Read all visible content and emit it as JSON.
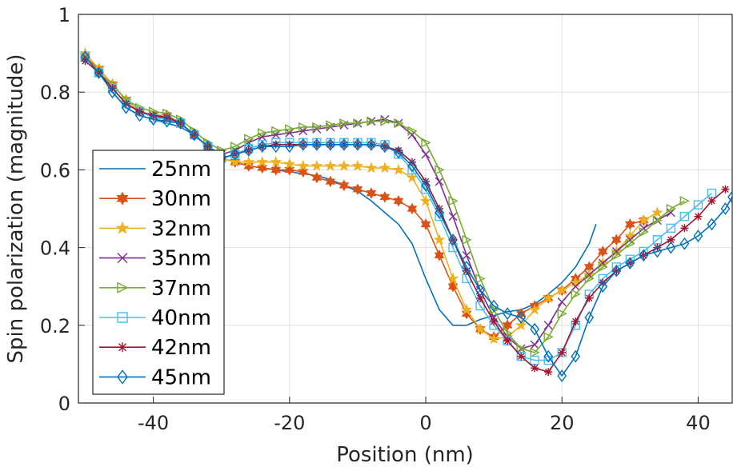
{
  "chart_data": {
    "type": "line",
    "title": "",
    "xlabel": "Position (nm)",
    "ylabel": "Spin polarization (magnitude)",
    "xlim": [
      -51,
      45
    ],
    "ylim": [
      0,
      1
    ],
    "xticks": [
      -40,
      -20,
      0,
      20,
      40
    ],
    "xtick_labels": [
      "-40",
      "-20",
      "0",
      "20",
      "40"
    ],
    "yticks": [
      0,
      0.2,
      0.4,
      0.6,
      0.8,
      1
    ],
    "ytick_labels": [
      "0",
      "0.2",
      "0.4",
      "0.6",
      "0.8",
      "1"
    ],
    "grid": true,
    "legend_position": "bottom-left",
    "series": [
      {
        "name": "25nm",
        "color": "#0072bd",
        "marker": "none",
        "x": [
          -50,
          -48,
          -46,
          -44,
          -42,
          -40,
          -38,
          -36,
          -34,
          -32,
          -30,
          -28,
          -26,
          -24,
          -22,
          -20,
          -18,
          -16,
          -14,
          -12,
          -10,
          -8,
          -6,
          -4,
          -2,
          0,
          2,
          4,
          6,
          8,
          10,
          12,
          14,
          16,
          18,
          20,
          22,
          24,
          25
        ],
        "y": [
          0.89,
          0.85,
          0.8,
          0.76,
          0.74,
          0.73,
          0.72,
          0.71,
          0.69,
          0.66,
          0.63,
          0.62,
          0.61,
          0.605,
          0.6,
          0.595,
          0.59,
          0.585,
          0.575,
          0.56,
          0.545,
          0.52,
          0.49,
          0.46,
          0.41,
          0.32,
          0.24,
          0.2,
          0.2,
          0.215,
          0.225,
          0.235,
          0.24,
          0.255,
          0.28,
          0.31,
          0.35,
          0.41,
          0.46
        ]
      },
      {
        "name": "30nm",
        "color": "#d95319",
        "marker": "hexagram",
        "x": [
          -50,
          -48,
          -46,
          -44,
          -42,
          -40,
          -38,
          -36,
          -34,
          -32,
          -30,
          -28,
          -26,
          -24,
          -22,
          -20,
          -18,
          -16,
          -14,
          -12,
          -10,
          -8,
          -6,
          -4,
          -2,
          0,
          2,
          4,
          6,
          8,
          10,
          12,
          14,
          16,
          18,
          20,
          22,
          24,
          26,
          28,
          30,
          32
        ],
        "y": [
          0.89,
          0.86,
          0.82,
          0.78,
          0.75,
          0.74,
          0.74,
          0.72,
          0.69,
          0.66,
          0.63,
          0.62,
          0.61,
          0.605,
          0.6,
          0.6,
          0.595,
          0.58,
          0.57,
          0.56,
          0.55,
          0.54,
          0.53,
          0.52,
          0.5,
          0.46,
          0.38,
          0.3,
          0.23,
          0.19,
          0.17,
          0.2,
          0.23,
          0.25,
          0.27,
          0.29,
          0.32,
          0.35,
          0.39,
          0.42,
          0.46,
          0.47
        ]
      },
      {
        "name": "32nm",
        "color": "#edb120",
        "marker": "pentagram",
        "x": [
          -50,
          -48,
          -46,
          -44,
          -42,
          -40,
          -38,
          -36,
          -34,
          -32,
          -30,
          -28,
          -26,
          -24,
          -22,
          -20,
          -18,
          -16,
          -14,
          -12,
          -10,
          -8,
          -6,
          -4,
          -2,
          0,
          2,
          4,
          6,
          8,
          10,
          12,
          14,
          16,
          18,
          20,
          22,
          24,
          26,
          28,
          30,
          32,
          34
        ],
        "y": [
          0.9,
          0.86,
          0.82,
          0.78,
          0.75,
          0.74,
          0.735,
          0.72,
          0.69,
          0.66,
          0.63,
          0.62,
          0.62,
          0.62,
          0.62,
          0.615,
          0.61,
          0.61,
          0.61,
          0.61,
          0.61,
          0.605,
          0.605,
          0.6,
          0.58,
          0.52,
          0.42,
          0.32,
          0.24,
          0.19,
          0.165,
          0.17,
          0.2,
          0.24,
          0.27,
          0.29,
          0.31,
          0.33,
          0.36,
          0.39,
          0.43,
          0.47,
          0.49
        ]
      },
      {
        "name": "35nm",
        "color": "#7e2f8e",
        "marker": "x",
        "x": [
          -50,
          -48,
          -46,
          -44,
          -42,
          -40,
          -38,
          -36,
          -34,
          -32,
          -30,
          -28,
          -26,
          -24,
          -22,
          -20,
          -18,
          -16,
          -14,
          -12,
          -10,
          -8,
          -6,
          -4,
          -2,
          0,
          2,
          4,
          6,
          8,
          10,
          12,
          14,
          16,
          18,
          20,
          22,
          24,
          26,
          28,
          30,
          32,
          34,
          36
        ],
        "y": [
          0.89,
          0.85,
          0.81,
          0.77,
          0.75,
          0.74,
          0.73,
          0.72,
          0.69,
          0.66,
          0.64,
          0.65,
          0.67,
          0.685,
          0.69,
          0.695,
          0.7,
          0.705,
          0.71,
          0.715,
          0.72,
          0.725,
          0.73,
          0.72,
          0.69,
          0.64,
          0.57,
          0.48,
          0.38,
          0.29,
          0.22,
          0.17,
          0.14,
          0.15,
          0.2,
          0.26,
          0.3,
          0.33,
          0.36,
          0.39,
          0.42,
          0.45,
          0.47,
          0.49
        ]
      },
      {
        "name": "37nm",
        "color": "#77ac30",
        "marker": "triangle-right",
        "x": [
          -50,
          -48,
          -46,
          -44,
          -42,
          -40,
          -38,
          -36,
          -34,
          -32,
          -30,
          -28,
          -26,
          -24,
          -22,
          -20,
          -18,
          -16,
          -14,
          -12,
          -10,
          -8,
          -6,
          -4,
          -2,
          0,
          2,
          4,
          6,
          8,
          10,
          12,
          14,
          16,
          18,
          20,
          22,
          24,
          26,
          28,
          30,
          32,
          34,
          36,
          38
        ],
        "y": [
          0.89,
          0.85,
          0.82,
          0.78,
          0.76,
          0.75,
          0.745,
          0.73,
          0.7,
          0.67,
          0.65,
          0.66,
          0.68,
          0.695,
          0.7,
          0.705,
          0.71,
          0.71,
          0.715,
          0.72,
          0.72,
          0.725,
          0.725,
          0.72,
          0.7,
          0.67,
          0.6,
          0.52,
          0.42,
          0.32,
          0.24,
          0.18,
          0.14,
          0.13,
          0.17,
          0.23,
          0.28,
          0.32,
          0.35,
          0.38,
          0.41,
          0.44,
          0.47,
          0.5,
          0.52
        ]
      },
      {
        "name": "40nm",
        "color": "#4dbeee",
        "marker": "square",
        "x": [
          -50,
          -48,
          -46,
          -44,
          -42,
          -40,
          -38,
          -36,
          -34,
          -32,
          -30,
          -28,
          -26,
          -24,
          -22,
          -20,
          -18,
          -16,
          -14,
          -12,
          -10,
          -8,
          -6,
          -4,
          -2,
          0,
          2,
          4,
          6,
          8,
          10,
          12,
          14,
          16,
          18,
          20,
          22,
          24,
          26,
          28,
          30,
          32,
          34,
          36,
          38,
          40,
          42
        ],
        "y": [
          0.89,
          0.85,
          0.81,
          0.77,
          0.75,
          0.735,
          0.73,
          0.72,
          0.69,
          0.66,
          0.63,
          0.64,
          0.655,
          0.665,
          0.67,
          0.67,
          0.67,
          0.67,
          0.67,
          0.67,
          0.67,
          0.67,
          0.665,
          0.64,
          0.6,
          0.55,
          0.48,
          0.4,
          0.32,
          0.25,
          0.2,
          0.16,
          0.12,
          0.11,
          0.11,
          0.13,
          0.2,
          0.28,
          0.32,
          0.35,
          0.37,
          0.39,
          0.42,
          0.45,
          0.48,
          0.51,
          0.54
        ]
      },
      {
        "name": "42nm",
        "color": "#a2142f",
        "marker": "asterisk",
        "x": [
          -50,
          -48,
          -46,
          -44,
          -42,
          -40,
          -38,
          -36,
          -34,
          -32,
          -30,
          -28,
          -26,
          -24,
          -22,
          -20,
          -18,
          -16,
          -14,
          -12,
          -10,
          -8,
          -6,
          -4,
          -2,
          0,
          2,
          4,
          6,
          8,
          10,
          12,
          14,
          16,
          18,
          20,
          22,
          24,
          26,
          28,
          30,
          32,
          34,
          36,
          38,
          40,
          42,
          44
        ],
        "y": [
          0.88,
          0.85,
          0.81,
          0.77,
          0.75,
          0.74,
          0.735,
          0.72,
          0.69,
          0.66,
          0.63,
          0.64,
          0.65,
          0.66,
          0.665,
          0.665,
          0.665,
          0.665,
          0.665,
          0.665,
          0.665,
          0.665,
          0.66,
          0.65,
          0.62,
          0.57,
          0.5,
          0.42,
          0.34,
          0.27,
          0.21,
          0.16,
          0.12,
          0.09,
          0.08,
          0.13,
          0.21,
          0.27,
          0.31,
          0.34,
          0.36,
          0.38,
          0.4,
          0.42,
          0.45,
          0.48,
          0.52,
          0.55
        ]
      },
      {
        "name": "45nm",
        "color": "#0072bd",
        "marker": "diamond",
        "x": [
          -50,
          -48,
          -46,
          -44,
          -42,
          -40,
          -38,
          -36,
          -34,
          -32,
          -30,
          -28,
          -26,
          -24,
          -22,
          -20,
          -18,
          -16,
          -14,
          -12,
          -10,
          -8,
          -6,
          -4,
          -2,
          0,
          2,
          4,
          6,
          8,
          10,
          12,
          14,
          16,
          18,
          20,
          22,
          24,
          26,
          28,
          30,
          32,
          34,
          36,
          38,
          40,
          42,
          44,
          45
        ],
        "y": [
          0.89,
          0.85,
          0.8,
          0.76,
          0.74,
          0.73,
          0.725,
          0.72,
          0.69,
          0.66,
          0.63,
          0.64,
          0.65,
          0.66,
          0.66,
          0.66,
          0.665,
          0.665,
          0.665,
          0.665,
          0.665,
          0.665,
          0.66,
          0.645,
          0.61,
          0.56,
          0.49,
          0.42,
          0.35,
          0.29,
          0.25,
          0.23,
          0.22,
          0.19,
          0.12,
          0.07,
          0.12,
          0.22,
          0.3,
          0.34,
          0.36,
          0.38,
          0.39,
          0.4,
          0.41,
          0.43,
          0.46,
          0.5,
          0.53
        ]
      }
    ]
  }
}
